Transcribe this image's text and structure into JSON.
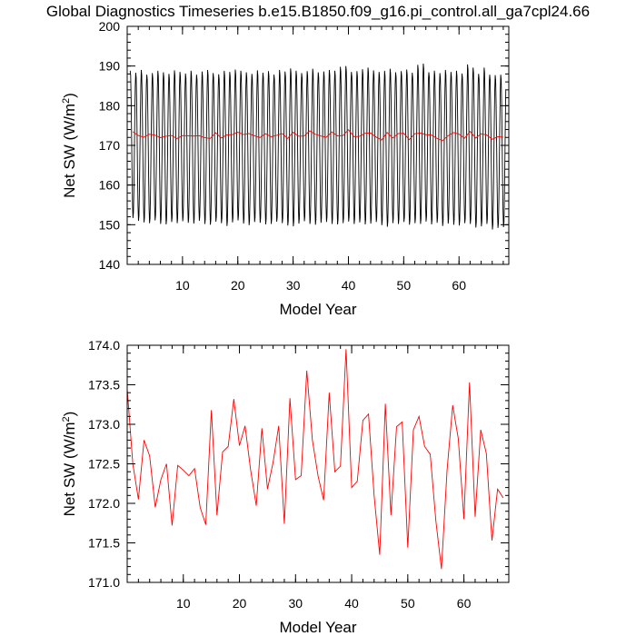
{
  "title": "Global Diagnostics Timeseries b.e15.B1850.f09_g16.pi_control.all_ga7cpl24.66",
  "colors": {
    "monthly": "#000000",
    "annual": "#ff0000"
  },
  "chart_data": [
    {
      "type": "line",
      "xlabel": "Model Year",
      "ylabel_main": "Net SW (W/m",
      "ylabel_sup": "2",
      "ylabel_close": ")",
      "xlim": [
        0,
        69
      ],
      "ylim": [
        140,
        200
      ],
      "xticks": [
        10,
        20,
        30,
        40,
        50,
        60
      ],
      "yticks": [
        140,
        150,
        160,
        170,
        180,
        190,
        200
      ],
      "xtick_labels": [
        "10",
        "20",
        "30",
        "40",
        "50",
        "60"
      ],
      "ytick_labels": [
        "140",
        "150",
        "160",
        "170",
        "180",
        "190",
        "200"
      ],
      "series": [
        {
          "kind": "monthly",
          "cycle_peak_values": [
            189.0,
            188.5,
            189.2,
            188.0,
            188.4,
            189.0,
            188.6,
            188.2,
            189.1,
            188.7,
            188.3,
            189.0,
            188.0,
            188.8,
            189.2,
            188.4,
            188.1,
            189.0,
            188.7,
            189.3,
            189.0,
            188.6,
            188.2,
            189.1,
            188.5,
            188.9,
            188.0,
            189.2,
            188.8,
            189.6,
            189.0,
            188.4,
            188.9,
            189.5,
            188.6,
            188.8,
            189.2,
            189.0,
            190.0,
            190.2,
            188.7,
            188.9,
            189.4,
            189.8,
            189.1,
            188.7,
            189.0,
            189.5,
            188.6,
            188.9,
            189.3,
            188.5,
            190.5,
            190.8,
            188.6,
            189.0,
            188.4,
            189.2,
            188.7,
            189.0,
            188.3,
            190.6,
            189.8,
            188.2,
            189.8,
            188.0,
            187.9,
            188.0
          ],
          "cycle_trough_values": [
            151.5,
            150.8,
            150.4,
            150.2,
            150.9,
            150.0,
            149.9,
            150.5,
            150.2,
            150.7,
            150.3,
            150.1,
            150.8,
            150.0,
            149.8,
            150.6,
            150.2,
            149.5,
            150.4,
            150.9,
            150.1,
            149.7,
            150.5,
            150.3,
            149.9,
            150.0,
            150.6,
            150.2,
            149.6,
            149.4,
            150.1,
            150.7,
            150.0,
            149.8,
            150.3,
            150.5,
            150.0,
            149.9,
            150.2,
            150.6,
            150.0,
            150.4,
            149.9,
            150.1,
            150.5,
            149.7,
            149.3,
            150.2,
            150.0,
            150.5,
            149.8,
            150.2,
            150.0,
            150.6,
            149.9,
            150.3,
            149.5,
            150.1,
            149.8,
            149.6,
            150.2,
            150.0,
            149.1,
            149.4,
            150.0,
            148.6,
            149.0,
            149.2
          ]
        },
        {
          "kind": "annual",
          "x": [
            1,
            2,
            3,
            4,
            5,
            6,
            7,
            8,
            9,
            10,
            11,
            12,
            13,
            14,
            15,
            16,
            17,
            18,
            19,
            20,
            21,
            22,
            23,
            24,
            25,
            26,
            27,
            28,
            29,
            30,
            31,
            32,
            33,
            34,
            35,
            36,
            37,
            38,
            39,
            40,
            41,
            42,
            43,
            44,
            45,
            46,
            47,
            48,
            49,
            50,
            51,
            52,
            53,
            54,
            55,
            56,
            57,
            58,
            59,
            60,
            61,
            62,
            63,
            64,
            65,
            66,
            67,
            68
          ],
          "values": [
            173.45,
            172.5,
            172.05,
            172.8,
            172.6,
            171.95,
            172.3,
            172.5,
            171.72,
            172.48,
            172.42,
            172.35,
            172.44,
            171.95,
            171.73,
            173.18,
            171.85,
            172.65,
            172.72,
            173.32,
            172.73,
            172.98,
            172.42,
            171.97,
            172.95,
            172.18,
            172.52,
            172.98,
            171.74,
            173.33,
            172.3,
            172.35,
            173.68,
            172.8,
            172.35,
            172.04,
            173.4,
            172.4,
            172.47,
            173.95,
            172.2,
            172.28,
            173.05,
            173.13,
            172.1,
            171.35,
            173.26,
            171.85,
            172.97,
            173.03,
            171.44,
            172.93,
            173.1,
            172.72,
            172.62,
            171.78,
            171.17,
            172.42,
            173.24,
            172.82,
            171.8,
            173.53,
            171.83,
            172.93,
            172.63,
            171.53,
            172.18,
            172.07
          ]
        }
      ]
    },
    {
      "type": "line",
      "xlabel": "Model Year",
      "ylabel_main": "Net SW (W/m",
      "ylabel_sup": "2",
      "ylabel_close": ")",
      "xlim": [
        0,
        68
      ],
      "ylim": [
        171.0,
        174.0
      ],
      "xticks": [
        10,
        20,
        30,
        40,
        50,
        60
      ],
      "yticks": [
        171.0,
        171.5,
        172.0,
        172.5,
        173.0,
        173.5,
        174.0
      ],
      "xtick_labels": [
        "10",
        "20",
        "30",
        "40",
        "50",
        "60"
      ],
      "ytick_labels": [
        "171.0",
        "171.5",
        "172.0",
        "172.5",
        "173.0",
        "173.5",
        "174.0"
      ],
      "series": [
        {
          "kind": "annual",
          "x": [
            0,
            1,
            2,
            3,
            4,
            5,
            6,
            7,
            8,
            9,
            10,
            11,
            12,
            13,
            14,
            15,
            16,
            17,
            18,
            19,
            20,
            21,
            22,
            23,
            24,
            25,
            26,
            27,
            28,
            29,
            30,
            31,
            32,
            33,
            34,
            35,
            36,
            37,
            38,
            39,
            40,
            41,
            42,
            43,
            44,
            45,
            46,
            47,
            48,
            49,
            50,
            51,
            52,
            53,
            54,
            55,
            56,
            57,
            58,
            59,
            60,
            61,
            62,
            63,
            64,
            65,
            66,
            67
          ],
          "values": [
            173.45,
            172.5,
            172.05,
            172.8,
            172.6,
            171.95,
            172.3,
            172.5,
            171.72,
            172.48,
            172.42,
            172.35,
            172.44,
            171.95,
            171.73,
            173.18,
            171.85,
            172.65,
            172.72,
            173.32,
            172.73,
            172.98,
            172.42,
            171.97,
            172.95,
            172.18,
            172.52,
            172.98,
            171.74,
            173.33,
            172.3,
            172.35,
            173.68,
            172.8,
            172.35,
            172.04,
            173.4,
            172.4,
            172.47,
            173.95,
            172.2,
            172.28,
            173.05,
            173.13,
            172.1,
            171.35,
            173.26,
            171.85,
            172.97,
            173.03,
            171.44,
            172.93,
            173.1,
            172.72,
            172.62,
            171.78,
            171.17,
            172.42,
            173.24,
            172.82,
            171.8,
            173.53,
            171.83,
            172.93,
            172.63,
            171.53,
            172.18,
            172.07
          ]
        }
      ]
    }
  ]
}
